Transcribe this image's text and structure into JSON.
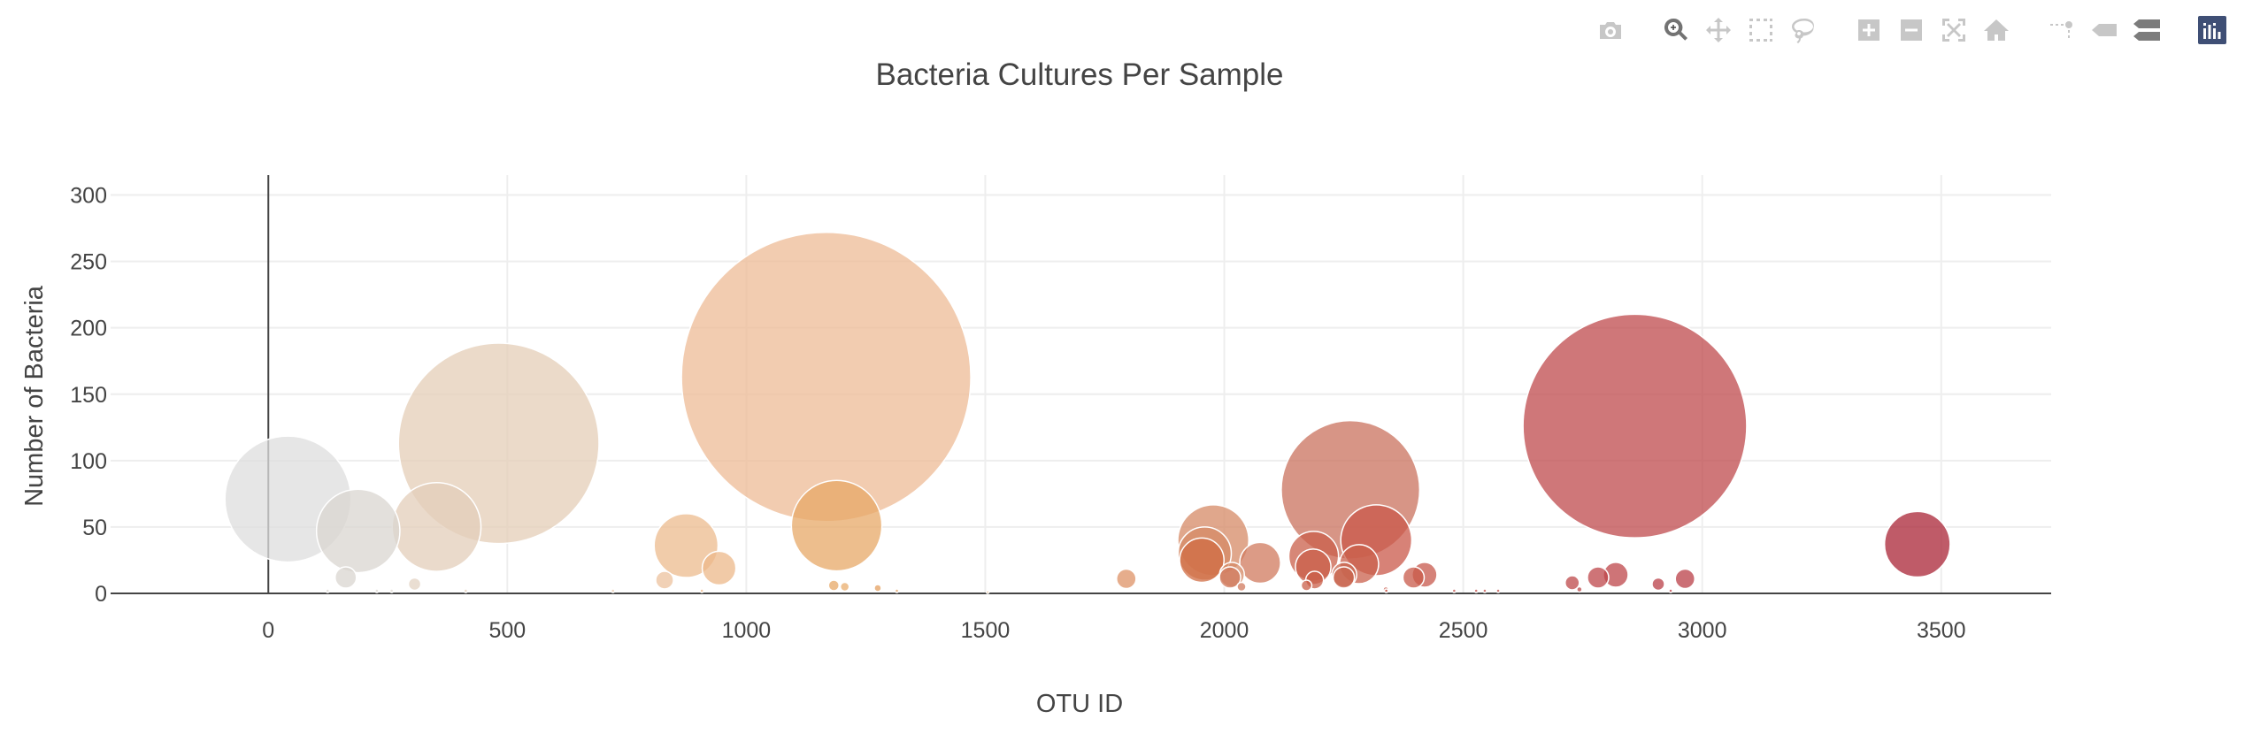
{
  "chart_data": {
    "type": "scatter",
    "mode": "bubble",
    "title": "Bacteria Cultures Per Sample",
    "xlabel": "OTU ID",
    "ylabel": "Number of Bacteria",
    "xlim": [
      -330,
      3730
    ],
    "ylim": [
      0,
      315
    ],
    "x_ticks": [
      0,
      500,
      1000,
      1500,
      2000,
      2500,
      3000,
      3500
    ],
    "y_ticks": [
      0,
      50,
      100,
      150,
      200,
      250,
      300
    ],
    "grid": true,
    "legend": "none",
    "colorscale": "Earth",
    "marker_opacity": 0.75,
    "marker_line_color": "#ffffff",
    "points": [
      {
        "x": 1167,
        "y": 163,
        "size": 163,
        "color": "#eebb95"
      },
      {
        "x": 2859,
        "y": 126,
        "size": 126,
        "color": "#bf4a4c"
      },
      {
        "x": 482,
        "y": 113,
        "size": 113,
        "color": "#e4cdb7"
      },
      {
        "x": 2264,
        "y": 78,
        "size": 78,
        "color": "#c9715e"
      },
      {
        "x": 41,
        "y": 71,
        "size": 71,
        "color": "#dddddd"
      },
      {
        "x": 188,
        "y": 47,
        "size": 47,
        "color": "#d9d5d0"
      },
      {
        "x": 352,
        "y": 50,
        "size": 50,
        "color": "#e3cdb9"
      },
      {
        "x": 1189,
        "y": 51,
        "size": 51,
        "color": "#e7a867"
      },
      {
        "x": 1977,
        "y": 40,
        "size": 40,
        "color": "#d68965"
      },
      {
        "x": 2318,
        "y": 40,
        "size": 40,
        "color": "#c9584a"
      },
      {
        "x": 3450,
        "y": 37,
        "size": 37,
        "color": "#aa2435"
      },
      {
        "x": 874,
        "y": 36,
        "size": 36,
        "color": "#ecbb8d"
      },
      {
        "x": 1959,
        "y": 30,
        "size": 30,
        "color": "#d68965"
      },
      {
        "x": 1953,
        "y": 25,
        "size": 25,
        "color": "#d06c43"
      },
      {
        "x": 2187,
        "y": 28,
        "size": 28,
        "color": "#c95f4a"
      },
      {
        "x": 2075,
        "y": 23,
        "size": 23,
        "color": "#d07a5e"
      },
      {
        "x": 2282,
        "y": 22,
        "size": 22,
        "color": "#c9604c"
      },
      {
        "x": 2186,
        "y": 20,
        "size": 20,
        "color": "#c95f4a"
      },
      {
        "x": 943,
        "y": 19,
        "size": 19,
        "color": "#ecb889"
      },
      {
        "x": 2016,
        "y": 14,
        "size": 14,
        "color": "#d68965"
      },
      {
        "x": 2251,
        "y": 14,
        "size": 14,
        "color": "#c8664f"
      },
      {
        "x": 2419,
        "y": 14,
        "size": 14,
        "color": "#c7584c"
      },
      {
        "x": 2819,
        "y": 14,
        "size": 14,
        "color": "#bd4549"
      },
      {
        "x": 162,
        "y": 12,
        "size": 12,
        "color": "#d9d5d0"
      },
      {
        "x": 2012,
        "y": 12,
        "size": 12,
        "color": "#d07a5e"
      },
      {
        "x": 2396,
        "y": 12,
        "size": 12,
        "color": "#c85a4a"
      },
      {
        "x": 2250,
        "y": 12,
        "size": 12,
        "color": "#c8664f"
      },
      {
        "x": 2782,
        "y": 12,
        "size": 12,
        "color": "#bd4549"
      },
      {
        "x": 1795,
        "y": 11,
        "size": 11,
        "color": "#dd9165"
      },
      {
        "x": 2964,
        "y": 11,
        "size": 11,
        "color": "#ba3f47"
      },
      {
        "x": 829,
        "y": 10,
        "size": 10,
        "color": "#ecc19d"
      },
      {
        "x": 2189,
        "y": 10,
        "size": 10,
        "color": "#c95f4a"
      },
      {
        "x": 2728,
        "y": 8,
        "size": 8,
        "color": "#be4849"
      },
      {
        "x": 2908,
        "y": 7,
        "size": 7,
        "color": "#ba3f47"
      },
      {
        "x": 306,
        "y": 7,
        "size": 7,
        "color": "#e3d3c3"
      },
      {
        "x": 1183,
        "y": 6,
        "size": 6,
        "color": "#e7a867"
      },
      {
        "x": 2172,
        "y": 6,
        "size": 6,
        "color": "#c95f4a"
      },
      {
        "x": 1206,
        "y": 5,
        "size": 5,
        "color": "#e9ad6e"
      },
      {
        "x": 2036,
        "y": 5,
        "size": 5,
        "color": "#d07a5e"
      },
      {
        "x": 1275,
        "y": 4,
        "size": 4,
        "color": "#e4a060"
      },
      {
        "x": 2743,
        "y": 3,
        "size": 3,
        "color": "#be4849"
      },
      {
        "x": 2338,
        "y": 3,
        "size": 3,
        "color": "#c9584a"
      },
      {
        "x": 2339,
        "y": 2,
        "size": 2,
        "color": "#c9584a"
      },
      {
        "x": 2573,
        "y": 2,
        "size": 2,
        "color": "#c34f4a"
      },
      {
        "x": 907,
        "y": 2,
        "size": 2,
        "color": "#ecb889"
      },
      {
        "x": 1315,
        "y": 2,
        "size": 2,
        "color": "#e4a060"
      },
      {
        "x": 2934,
        "y": 2,
        "size": 2,
        "color": "#ba3f47"
      },
      {
        "x": 227,
        "y": 2,
        "size": 2,
        "color": "#ddd8d2"
      },
      {
        "x": 258,
        "y": 2,
        "size": 2,
        "color": "#ddd8d2"
      },
      {
        "x": 413,
        "y": 2,
        "size": 2,
        "color": "#e4cdb7"
      },
      {
        "x": 1505,
        "y": 1,
        "size": 1,
        "color": "#e4a060"
      },
      {
        "x": 2481,
        "y": 2,
        "size": 2,
        "color": "#c34f4a"
      },
      {
        "x": 2527,
        "y": 2,
        "size": 2,
        "color": "#c34f4a"
      },
      {
        "x": 2545,
        "y": 2,
        "size": 2,
        "color": "#c34f4a"
      },
      {
        "x": 124,
        "y": 2,
        "size": 2,
        "color": "#ddd8d2"
      },
      {
        "x": 721,
        "y": 2,
        "size": 2,
        "color": "#e8c9ad"
      }
    ]
  },
  "modebar": {
    "groups": [
      [
        {
          "icon": "camera-icon",
          "title": "Download plot as a png"
        }
      ],
      [
        {
          "icon": "zoom-icon",
          "title": "Zoom",
          "active": true
        },
        {
          "icon": "pan-icon",
          "title": "Pan"
        },
        {
          "icon": "box-select-icon",
          "title": "Box Select"
        },
        {
          "icon": "lasso-select-icon",
          "title": "Lasso Select"
        }
      ],
      [
        {
          "icon": "zoom-in-icon",
          "title": "Zoom in"
        },
        {
          "icon": "zoom-out-icon",
          "title": "Zoom out"
        },
        {
          "icon": "autoscale-icon",
          "title": "Autoscale"
        },
        {
          "icon": "home-icon",
          "title": "Reset axes"
        }
      ],
      [
        {
          "icon": "spike-lines-icon",
          "title": "Toggle Spike Lines"
        },
        {
          "icon": "hover-closest-icon",
          "title": "Show closest data on hover"
        },
        {
          "icon": "hover-compare-icon",
          "title": "Compare data on hover",
          "dark": true
        }
      ],
      [
        {
          "icon": "plotly-logo-icon",
          "title": "Produced with Plotly"
        }
      ]
    ]
  }
}
